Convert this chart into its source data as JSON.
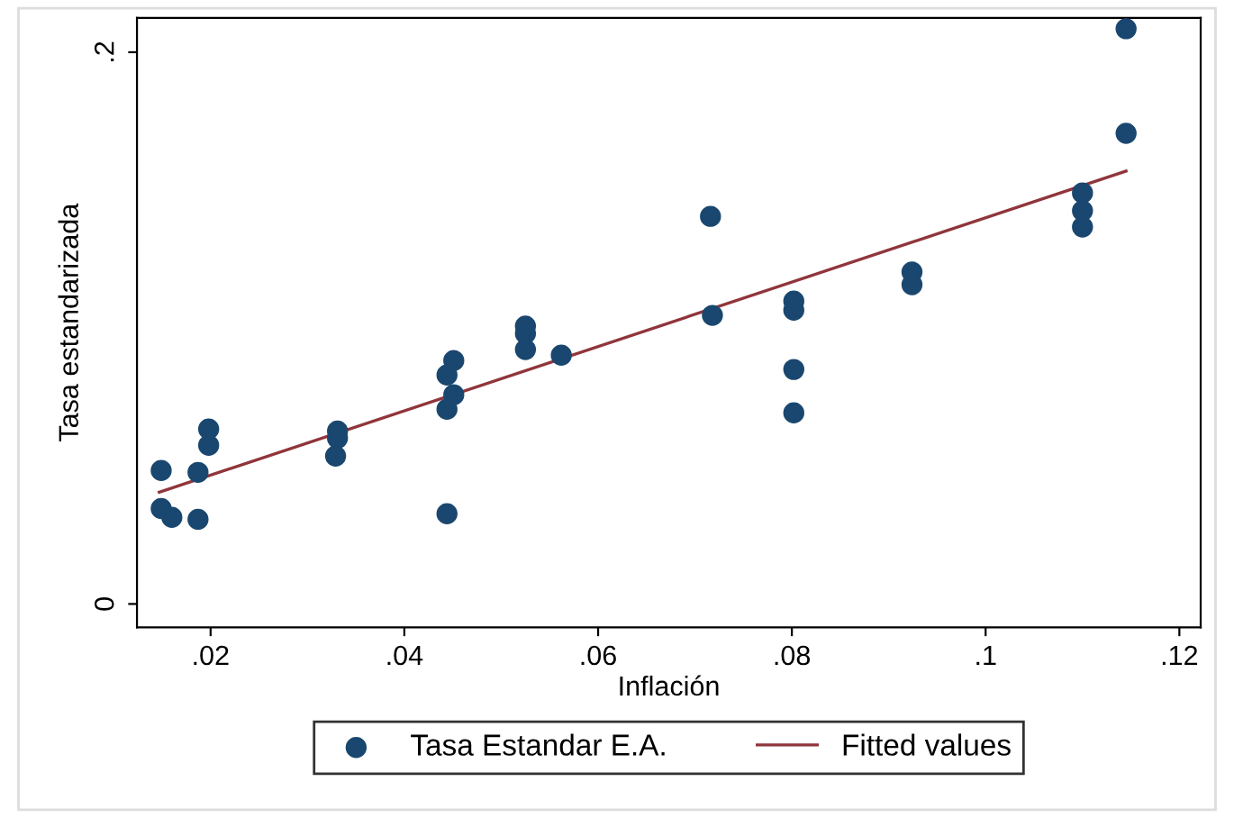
{
  "chart_data": {
    "type": "scatter",
    "xlabel": "Inflación",
    "ylabel": "Tasa estandarizada",
    "xlim": [
      0.0124,
      0.1222
    ],
    "ylim": [
      -0.0085,
      0.2124
    ],
    "xticks": [
      {
        "value": 0.02,
        "label": ".02"
      },
      {
        "value": 0.04,
        "label": ".04"
      },
      {
        "value": 0.06,
        "label": ".06"
      },
      {
        "value": 0.08,
        "label": ".08"
      },
      {
        "value": 0.1,
        "label": ".1"
      },
      {
        "value": 0.12,
        "label": ".12"
      }
    ],
    "yticks": [
      0,
      {
        "value": 0.2,
        "label": ".2"
      }
    ],
    "grid": false,
    "legend": "bottom",
    "marker": "circle",
    "series": [
      {
        "name": "Tasa Estandar E.A.",
        "color": "#1a476f",
        "x": [
          0.0149,
          0.0149,
          0.016,
          0.0187,
          0.0187,
          0.0198,
          0.0198,
          0.0331,
          0.0331,
          0.0329,
          0.0444,
          0.0451,
          0.0451,
          0.0444,
          0.0444,
          0.0525,
          0.0525,
          0.0525,
          0.0562,
          0.0716,
          0.0718,
          0.0802,
          0.0802,
          0.0802,
          0.0802,
          0.0924,
          0.0924,
          0.11,
          0.11,
          0.11,
          0.1145,
          0.1145
        ],
        "values": [
          0.0484,
          0.0346,
          0.0314,
          0.0477,
          0.0307,
          0.0634,
          0.0575,
          0.0627,
          0.0601,
          0.0536,
          0.083,
          0.0882,
          0.0758,
          0.0706,
          0.0327,
          0.1007,
          0.098,
          0.0922,
          0.0902,
          0.1405,
          0.1046,
          0.1098,
          0.1065,
          0.085,
          0.0693,
          0.1203,
          0.1157,
          0.149,
          0.1425,
          0.1366,
          0.2085,
          0.1706
        ]
      },
      {
        "name": "Fitted values",
        "type": "line",
        "color": "#90353b",
        "marker": "none",
        "x": [
          0.0147,
          0.1145
        ],
        "values": [
          0.0405,
          0.1569
        ]
      }
    ]
  }
}
